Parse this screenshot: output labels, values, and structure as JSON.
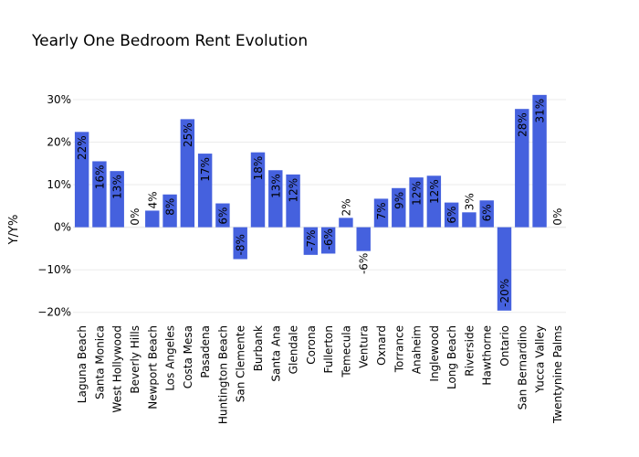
{
  "chart_data": {
    "type": "bar",
    "title": "Yearly One Bedroom Rent Evolution",
    "xlabel": "",
    "ylabel": "Y/Y%",
    "ylim": [
      -0.22,
      0.33
    ],
    "yticks": [
      -0.2,
      -0.1,
      0,
      0.1,
      0.2,
      0.3
    ],
    "ytick_labels": [
      "−20%",
      "−10%",
      "0%",
      "10%",
      "20%",
      "30%"
    ],
    "grid": true,
    "bar_color": "#4561DE",
    "categories": [
      "Laguna Beach",
      "Santa Monica",
      "West Hollywood",
      "Beverly Hills",
      "Newport Beach",
      "Los Angeles",
      "Costa Mesa",
      "Pasadena",
      "Huntington Beach",
      "San Clemente",
      "Burbank",
      "Santa Ana",
      "Glendale",
      "Corona",
      "Fullerton",
      "Temecula",
      "Ventura",
      "Oxnard",
      "Torrance",
      "Anaheim",
      "Inglewood",
      "Long Beach",
      "Riverside",
      "Hawthorne",
      "Ontario",
      "San Bernardino",
      "Yucca Valley",
      "Twentynine Palms"
    ],
    "values": [
      0.224,
      0.155,
      0.132,
      0.0,
      0.039,
      0.077,
      0.254,
      0.173,
      0.056,
      -0.075,
      0.176,
      0.134,
      0.124,
      -0.065,
      -0.062,
      0.022,
      -0.056,
      0.067,
      0.092,
      0.117,
      0.121,
      0.058,
      0.035,
      0.063,
      -0.196,
      0.278,
      0.311,
      0.0
    ],
    "data_labels": [
      "22%",
      "16%",
      "13%",
      "0%",
      "4%",
      "8%",
      "25%",
      "17%",
      "6%",
      "-8%",
      "18%",
      "13%",
      "12%",
      "-7%",
      "-6%",
      "2%",
      "-6%",
      "7%",
      "9%",
      "12%",
      "12%",
      "6%",
      "3%",
      "6%",
      "-20%",
      "28%",
      "31%",
      "0%"
    ]
  }
}
